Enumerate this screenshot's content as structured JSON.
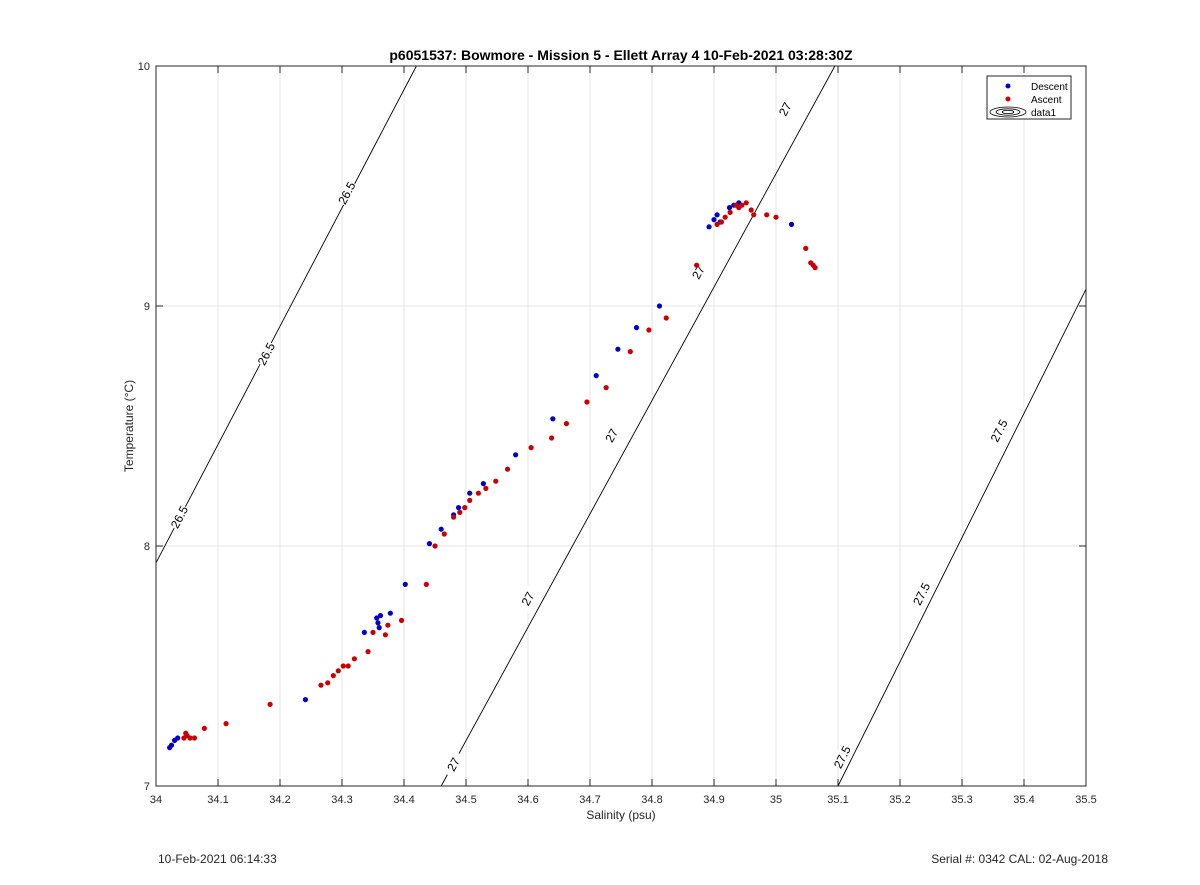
{
  "chart_data": {
    "type": "scatter",
    "title": "p6051537: Bowmore - Mission 5 - Ellett Array 4 10-Feb-2021 03:28:30Z",
    "xlabel": "Salinity (psu)",
    "ylabel": "Temperature (°C)",
    "xlim": [
      34,
      35.5
    ],
    "ylim": [
      7,
      10
    ],
    "xticks": [
      "34",
      "34.1",
      "34.2",
      "34.3",
      "34.4",
      "34.5",
      "34.6",
      "34.7",
      "34.8",
      "34.9",
      "35",
      "35.1",
      "35.2",
      "35.3",
      "35.4",
      "35.5"
    ],
    "yticks": [
      "7",
      "8",
      "9",
      "10"
    ],
    "grid": true,
    "legend_position": "top-right",
    "legend": [
      "Descent",
      "Ascent",
      "data1"
    ],
    "series": [
      {
        "name": "Descent",
        "color": "#0000cc",
        "points": [
          [
            34.022,
            7.16
          ],
          [
            34.025,
            7.17
          ],
          [
            34.03,
            7.19
          ],
          [
            34.035,
            7.2
          ],
          [
            34.241,
            7.36
          ],
          [
            34.336,
            7.64
          ],
          [
            34.356,
            7.7
          ],
          [
            34.358,
            7.68
          ],
          [
            34.36,
            7.66
          ],
          [
            34.362,
            7.71
          ],
          [
            34.378,
            7.72
          ],
          [
            34.402,
            7.84
          ],
          [
            34.441,
            8.01
          ],
          [
            34.46,
            8.07
          ],
          [
            34.48,
            8.13
          ],
          [
            34.488,
            8.16
          ],
          [
            34.506,
            8.22
          ],
          [
            34.528,
            8.26
          ],
          [
            34.58,
            8.38
          ],
          [
            34.64,
            8.53
          ],
          [
            34.71,
            8.71
          ],
          [
            34.745,
            8.82
          ],
          [
            34.775,
            8.91
          ],
          [
            34.812,
            9.0
          ],
          [
            34.892,
            9.33
          ],
          [
            34.9,
            9.36
          ],
          [
            34.905,
            9.38
          ],
          [
            34.91,
            9.35
          ],
          [
            34.925,
            9.41
          ],
          [
            34.932,
            9.42
          ],
          [
            34.94,
            9.43
          ],
          [
            35.025,
            9.34
          ]
        ]
      },
      {
        "name": "Ascent",
        "color": "#cc0000",
        "points": [
          [
            34.045,
            7.2
          ],
          [
            34.048,
            7.22
          ],
          [
            34.05,
            7.21
          ],
          [
            34.055,
            7.2
          ],
          [
            34.062,
            7.2
          ],
          [
            34.078,
            7.24
          ],
          [
            34.113,
            7.26
          ],
          [
            34.184,
            7.34
          ],
          [
            34.266,
            7.42
          ],
          [
            34.277,
            7.43
          ],
          [
            34.286,
            7.46
          ],
          [
            34.294,
            7.48
          ],
          [
            34.302,
            7.5
          ],
          [
            34.31,
            7.5
          ],
          [
            34.32,
            7.53
          ],
          [
            34.342,
            7.56
          ],
          [
            34.35,
            7.64
          ],
          [
            34.37,
            7.63
          ],
          [
            34.374,
            7.67
          ],
          [
            34.396,
            7.69
          ],
          [
            34.436,
            7.84
          ],
          [
            34.45,
            8.0
          ],
          [
            34.465,
            8.05
          ],
          [
            34.48,
            8.12
          ],
          [
            34.49,
            8.14
          ],
          [
            34.498,
            8.16
          ],
          [
            34.506,
            8.19
          ],
          [
            34.52,
            8.22
          ],
          [
            34.532,
            8.24
          ],
          [
            34.548,
            8.27
          ],
          [
            34.567,
            8.32
          ],
          [
            34.605,
            8.41
          ],
          [
            34.638,
            8.45
          ],
          [
            34.662,
            8.51
          ],
          [
            34.695,
            8.6
          ],
          [
            34.726,
            8.66
          ],
          [
            34.765,
            8.81
          ],
          [
            34.795,
            8.9
          ],
          [
            34.823,
            8.95
          ],
          [
            34.872,
            9.17
          ],
          [
            34.905,
            9.34
          ],
          [
            34.912,
            9.35
          ],
          [
            34.918,
            9.37
          ],
          [
            34.926,
            9.39
          ],
          [
            34.935,
            9.42
          ],
          [
            34.94,
            9.41
          ],
          [
            34.945,
            9.42
          ],
          [
            34.952,
            9.43
          ],
          [
            34.96,
            9.4
          ],
          [
            34.964,
            9.38
          ],
          [
            34.985,
            9.38
          ],
          [
            35.0,
            9.37
          ],
          [
            35.048,
            9.24
          ],
          [
            35.056,
            9.18
          ],
          [
            35.06,
            9.17
          ],
          [
            35.063,
            9.16
          ]
        ]
      }
    ],
    "isopycnals": [
      {
        "color": "#000000",
        "points": [
          [
            34.0,
            7.93
          ],
          [
            34.42,
            10.0
          ]
        ],
        "labels": [
          {
            "text": "26.5",
            "s": 34.038,
            "t": 8.12
          },
          {
            "text": "26.5",
            "s": 34.178,
            "t": 8.8
          },
          {
            "text": "26.5",
            "s": 34.308,
            "t": 9.47
          }
        ]
      },
      {
        "color": "#000000",
        "points": [
          [
            34.46,
            7.0
          ],
          [
            35.095,
            10.0
          ]
        ],
        "labels": [
          {
            "text": "27",
            "s": 34.48,
            "t": 7.09
          },
          {
            "text": "27",
            "s": 34.6,
            "t": 7.78
          },
          {
            "text": "27",
            "s": 34.735,
            "t": 8.46
          },
          {
            "text": "27",
            "s": 34.875,
            "t": 9.14
          },
          {
            "text": "27",
            "s": 35.015,
            "t": 9.82
          }
        ]
      },
      {
        "color": "#000000",
        "points": [
          [
            35.1,
            7.0
          ],
          [
            35.5,
            9.07
          ]
        ],
        "labels": [
          {
            "text": "27.5",
            "s": 35.107,
            "t": 7.12
          },
          {
            "text": "27.5",
            "s": 35.235,
            "t": 7.8
          },
          {
            "text": "27.5",
            "s": 35.36,
            "t": 8.48
          }
        ]
      }
    ]
  },
  "footer": {
    "timestamp": "10-Feb-2021 06:14:33",
    "serial": "Serial #: 0342  CAL: 02-Aug-2018"
  }
}
